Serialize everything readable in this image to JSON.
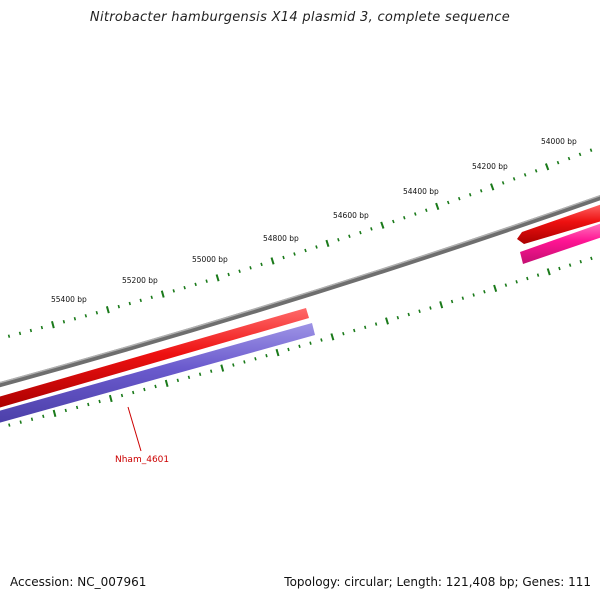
{
  "title": "Nitrobacter hamburgensis X14 plasmid 3, complete sequence",
  "footer": {
    "accession": "Accession: NC_007961",
    "summary": "Topology: circular; Length: 121,408 bp; Genes: 111"
  },
  "scale": {
    "tick_labels": [
      "55400 bp",
      "55200 bp",
      "55000 bp",
      "54800 bp",
      "54600 bp",
      "54400 bp",
      "54200 bp",
      "54000 bp"
    ],
    "tick_color": "#1a7a1a"
  },
  "backbone": {
    "color": "#7f7f7f"
  },
  "features": [
    {
      "name": "Nham_4601",
      "strand_color": "#ee1111",
      "label_color": "#cc0000"
    }
  ],
  "colors": {
    "cds_forward": "#ee1111",
    "cds_reverse_blue": "#6a5acd",
    "cds_reverse_pink": "#ff1493"
  }
}
